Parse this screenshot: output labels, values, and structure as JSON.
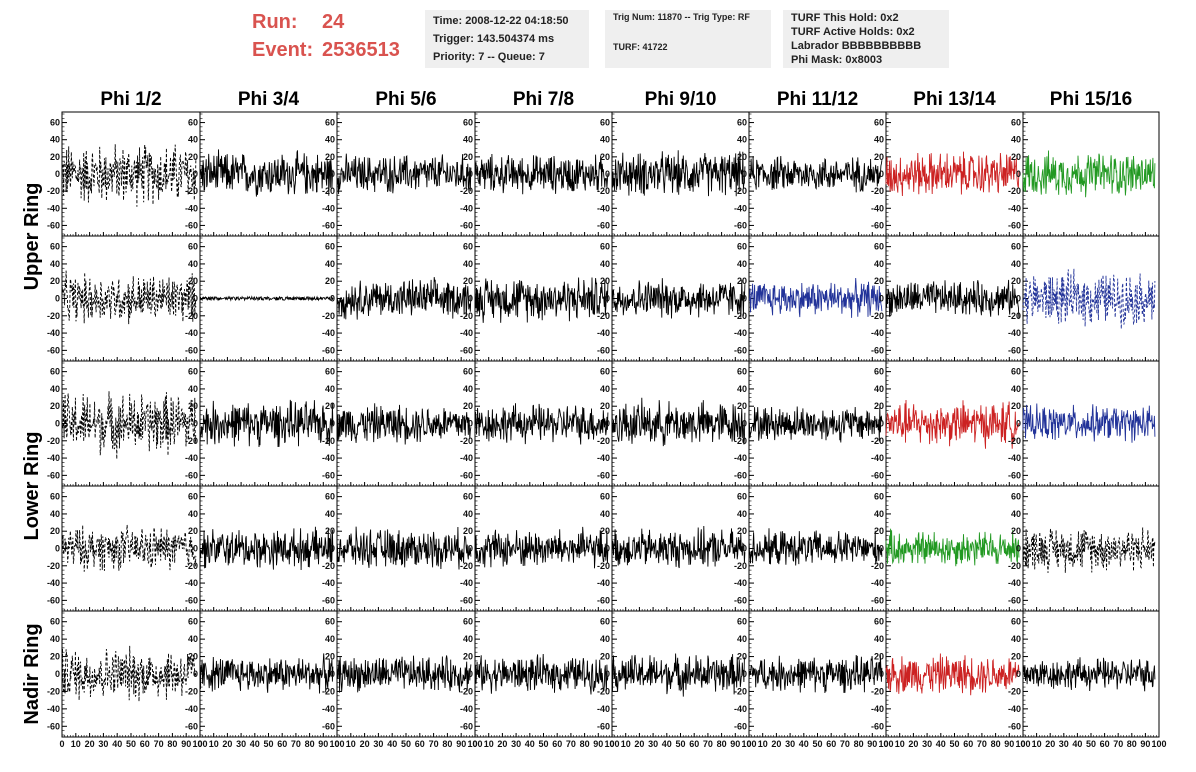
{
  "header": {
    "run_label": "Run:",
    "run_value": "24",
    "event_label": "Event:",
    "event_value": "2536513",
    "time": "Time: 2008-12-22 04:18:50",
    "trigger": "Trigger: 143.504374 ms",
    "priority": "Priority: 7 -- Queue: 7",
    "trig_num": "Trig Num: 11870 -- Trig Type: RF",
    "turf": "TURF: 41722",
    "turf_hold": "TURF This Hold: 0x2",
    "turf_active": "TURF Active Holds: 0x2",
    "labrador": "Labrador BBBBBBBBBB",
    "phi_mask": "Phi Mask: 0x8003"
  },
  "colors": {
    "run_text": "#d9534f",
    "info_bg": "#efefef",
    "black": "#000000",
    "red": "#cc2222",
    "green": "#229922",
    "blue": "#223399"
  },
  "chart_data": {
    "type": "line",
    "columns": [
      "Phi 1/2",
      "Phi 3/4",
      "Phi 5/6",
      "Phi 7/8",
      "Phi 9/10",
      "Phi 11/12",
      "Phi 13/14",
      "Phi 15/16"
    ],
    "rows": [
      "Upper Ring",
      "Upper Ring",
      "Lower Ring",
      "Lower Ring",
      "Nadir Ring"
    ],
    "row_titles": [
      "Upper Ring",
      "Lower Ring",
      "Nadir Ring"
    ],
    "xlim": [
      0,
      100
    ],
    "ylim": [
      -70,
      70
    ],
    "y_ticks": [
      -60,
      -40,
      -20,
      0,
      20,
      40,
      60
    ],
    "y_tick_labels": [
      "-60",
      "-40",
      "-20",
      "0",
      "20",
      "40",
      "60"
    ],
    "x_ticks": [
      0,
      10,
      20,
      30,
      40,
      50,
      60,
      70,
      80,
      90,
      100
    ],
    "x_tick_labels": [
      "0",
      "10",
      "20",
      "30",
      "40",
      "50",
      "60",
      "70",
      "80",
      "90",
      "100"
    ],
    "x_range_of_traces": [
      0,
      97
    ],
    "trace_styles": [
      [
        "dashed",
        "solid",
        "solid",
        "solid",
        "solid",
        "solid",
        "solid-red",
        "solid-green"
      ],
      [
        "dashed",
        "solid-flat",
        "solid",
        "solid",
        "solid",
        "solid-blue",
        "solid",
        "dashed-blue"
      ],
      [
        "dashed",
        "solid",
        "solid",
        "solid",
        "solid",
        "solid",
        "solid-red",
        "solid-blue"
      ],
      [
        "dashed",
        "solid",
        "solid",
        "solid",
        "solid",
        "solid",
        "solid-green",
        "dashed"
      ],
      [
        "dashed",
        "solid",
        "solid",
        "solid",
        "solid",
        "solid",
        "solid-red",
        "solid"
      ]
    ],
    "amplitudes": [
      [
        35,
        25,
        22,
        22,
        25,
        20,
        25,
        25
      ],
      [
        28,
        4,
        22,
        25,
        22,
        20,
        20,
        30
      ],
      [
        35,
        25,
        22,
        22,
        25,
        20,
        25,
        20
      ],
      [
        25,
        22,
        22,
        22,
        22,
        20,
        20,
        25
      ],
      [
        30,
        20,
        20,
        20,
        22,
        20,
        22,
        18
      ]
    ],
    "grid": false,
    "legend": "none"
  }
}
